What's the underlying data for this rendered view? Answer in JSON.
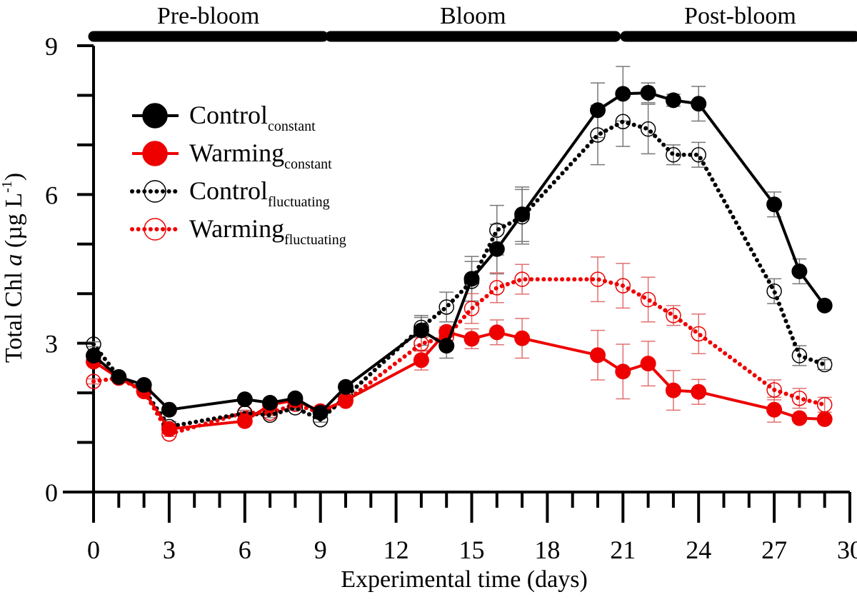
{
  "chart_data": {
    "type": "line",
    "xlabel": "Experimental time (days)",
    "ylabel_parts": [
      "Total Chl ",
      "a",
      " (µg L",
      "-1",
      ")"
    ],
    "xlim": [
      0,
      30
    ],
    "ylim": [
      0,
      9
    ],
    "xticks": [
      0,
      3,
      6,
      9,
      12,
      15,
      18,
      21,
      24,
      27,
      30
    ],
    "yticks": [
      0,
      3,
      6,
      9
    ],
    "grid": false,
    "legend_position": "top-left",
    "phases": [
      {
        "label": "Pre-bloom",
        "start": 0,
        "end": 9.1
      },
      {
        "label": "Bloom",
        "start": 9.4,
        "end": 20.7
      },
      {
        "label": "Post-bloom",
        "start": 21.1,
        "end": 30.2
      }
    ],
    "x": [
      0,
      1,
      2,
      3,
      6,
      7,
      8,
      9,
      10,
      13,
      14,
      15,
      16,
      17,
      20,
      21,
      22,
      23,
      24,
      27,
      28,
      29
    ],
    "series": [
      {
        "name": "Control",
        "subscript": "constant",
        "color": "#000000",
        "filled": true,
        "dotted": false,
        "values": [
          2.75,
          2.32,
          2.16,
          1.66,
          1.87,
          1.8,
          1.89,
          1.6,
          2.12,
          3.26,
          2.95,
          4.3,
          4.9,
          5.6,
          7.7,
          8.03,
          8.05,
          7.9,
          7.83,
          5.8,
          4.45,
          3.76
        ],
        "se": [
          0.05,
          0.05,
          0.05,
          0.05,
          0.05,
          0.05,
          0.05,
          0.05,
          0.05,
          0.3,
          0.25,
          0.45,
          0.5,
          0.55,
          0.55,
          0.55,
          0.2,
          0.12,
          0.35,
          0.25,
          0.25,
          0.05
        ]
      },
      {
        "name": "Warming",
        "subscript": "constant",
        "color": "#ee0000",
        "filled": true,
        "dotted": false,
        "values": [
          2.63,
          2.3,
          2.03,
          1.27,
          1.43,
          1.76,
          1.85,
          1.63,
          1.85,
          2.66,
          3.23,
          3.09,
          3.22,
          3.1,
          2.76,
          2.43,
          2.59,
          2.05,
          2.02,
          1.66,
          1.49,
          1.47
        ],
        "se": [
          0.05,
          0.05,
          0.05,
          0.05,
          0.05,
          0.05,
          0.05,
          0.05,
          0.05,
          0.2,
          0.1,
          0.2,
          0.25,
          0.4,
          0.5,
          0.55,
          0.45,
          0.4,
          0.25,
          0.25,
          0.05,
          0.05
        ]
      },
      {
        "name": "Control",
        "subscript": "fluctuating",
        "color": "#000000",
        "filled": false,
        "dotted": true,
        "values": [
          2.98,
          2.32,
          2.06,
          1.32,
          1.59,
          1.55,
          1.7,
          1.46,
          1.92,
          3.32,
          3.73,
          4.25,
          5.28,
          5.55,
          7.2,
          7.47,
          7.32,
          6.8,
          6.8,
          4.05,
          2.75,
          2.57
        ],
        "se": [
          0.05,
          0.05,
          0.05,
          0.1,
          0.05,
          0.05,
          0.05,
          0.05,
          0.05,
          0.2,
          0.3,
          0.4,
          0.5,
          0.55,
          0.6,
          0.5,
          0.5,
          0.2,
          0.25,
          0.25,
          0.2,
          0.1
        ]
      },
      {
        "name": "Warming",
        "subscript": "fluctuating",
        "color": "#ee0000",
        "filled": false,
        "dotted": true,
        "values": [
          2.23,
          2.3,
          2.03,
          1.17,
          1.6,
          1.59,
          1.77,
          1.6,
          1.83,
          2.99,
          3.13,
          3.7,
          4.12,
          4.29,
          4.29,
          4.16,
          3.88,
          3.56,
          3.19,
          2.06,
          1.89,
          1.76
        ],
        "se": [
          0.05,
          0.05,
          0.05,
          0.05,
          0.05,
          0.05,
          0.05,
          0.05,
          0.05,
          0.15,
          0.2,
          0.3,
          0.3,
          0.3,
          0.45,
          0.45,
          0.45,
          0.2,
          0.4,
          0.2,
          0.2,
          0.15
        ]
      }
    ]
  }
}
